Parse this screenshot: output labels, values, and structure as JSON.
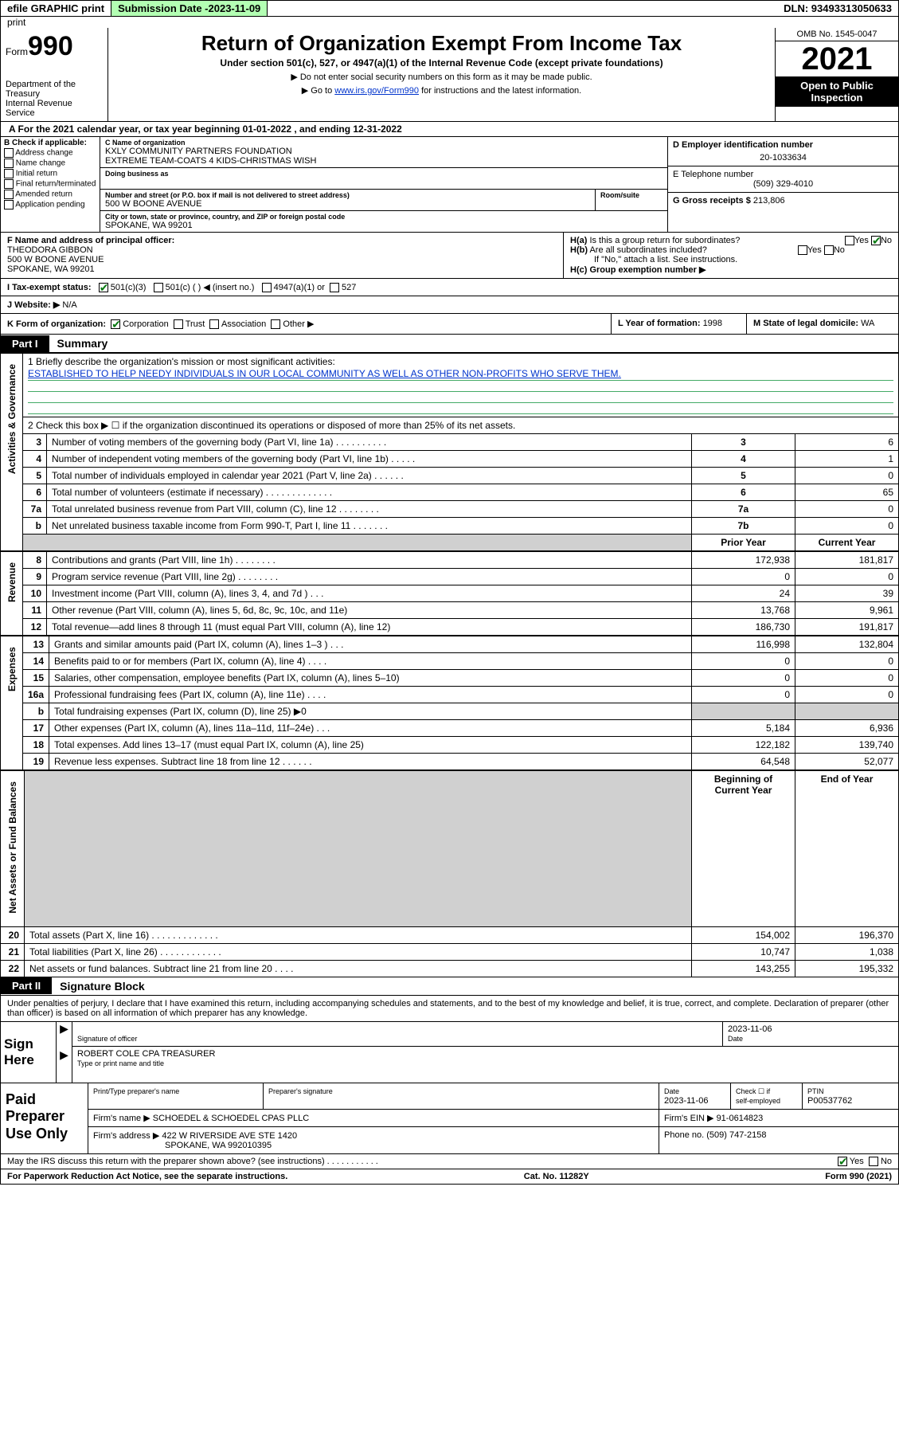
{
  "colors": {
    "green": "#b3ffb3",
    "link": "#0033cc",
    "ruleGreen": "#4a8a4a"
  },
  "topstrip": {
    "efile": "efile GRAPHIC print",
    "subLabel": "Submission Date - ",
    "subDate": "2023-11-09",
    "dln": "DLN: 93493313050633"
  },
  "header": {
    "formWord": "Form",
    "formNum": "990",
    "title": "Return of Organization Exempt From Income Tax",
    "sub": "Under section 501(c), 527, or 4947(a)(1) of the Internal Revenue Code (except private foundations)",
    "note1": "▶ Do not enter social security numbers on this form as it may be made public.",
    "note2a": "▶ Go to ",
    "note2link": "www.irs.gov/Form990",
    "note2b": " for instructions and the latest information.",
    "dept": "Department of the Treasury",
    "irs": "Internal Revenue Service",
    "omb": "OMB No. 1545-0047",
    "year": "2021",
    "pub": "Open to Public Inspection"
  },
  "rowA": "A  For the 2021 calendar year, or tax year beginning 01-01-2022   , and ending 12-31-2022",
  "boxB": {
    "head": "B Check if applicable:",
    "opts": [
      "Address change",
      "Name change",
      "Initial return",
      "Final return/terminated",
      "Amended return",
      "Application pending"
    ]
  },
  "boxC": {
    "nameLab": "C Name of organization",
    "name1": "KXLY COMMUNITY PARTNERS FOUNDATION",
    "name2": "EXTREME TEAM-COATS 4 KIDS-CHRISTMAS WISH",
    "dba": "Doing business as",
    "streetLab": "Number and street (or P.O. box if mail is not delivered to street address)",
    "roomLab": "Room/suite",
    "street": "500 W BOONE AVENUE",
    "cityLab": "City or town, state or province, country, and ZIP or foreign postal code",
    "city": "SPOKANE, WA  99201"
  },
  "boxRight": {
    "dLab": "D Employer identification number",
    "d": "20-1033634",
    "eLab": "E Telephone number",
    "e": "(509) 329-4010",
    "gLab": "G Gross receipts $ ",
    "g": "213,806"
  },
  "rowF": {
    "lab": "F  Name and address of principal officer:",
    "n": "THEODORA GIBBON",
    "a1": "500 W BOONE AVENUE",
    "a2": "SPOKANE, WA  99201"
  },
  "rowH": {
    "ha": "H(a)  Is this a group return for subordinates?",
    "hb": "H(b)  Are all subordinates included?",
    "note": "If \"No,\" attach a list. See instructions.",
    "hc": "H(c)  Group exemption number ▶",
    "yes": "Yes",
    "no": "No"
  },
  "rowI": "I   Tax-exempt status:",
  "rowI_opts": {
    "a": "501(c)(3)",
    "b": "501(c) (  ) ◀ (insert no.)",
    "c": "4947(a)(1) or",
    "d": "527"
  },
  "rowJ": {
    "lab": "J   Website: ▶ ",
    "v": "N/A"
  },
  "rowK": "K Form of organization:",
  "rowK_opts": {
    "a": "Corporation",
    "b": "Trust",
    "c": "Association",
    "d": "Other ▶"
  },
  "rowL": {
    "lab": "L Year of formation: ",
    "v": "1998"
  },
  "rowM": {
    "lab": "M State of legal domicile: ",
    "v": "WA"
  },
  "part1": {
    "tag": "Part I",
    "title": "Summary"
  },
  "side": {
    "a": "Activities & Governance",
    "b": "Revenue",
    "c": "Expenses",
    "d": "Net Assets or Fund Balances"
  },
  "mission": {
    "q": "1  Briefly describe the organization's mission or most significant activities:",
    "t": "ESTABLISHED TO HELP NEEDY INDIVIDUALS IN OUR LOCAL COMMUNITY AS WELL AS OTHER NON-PROFITS WHO SERVE THEM."
  },
  "lines": {
    "l2": "2   Check this box ▶ ☐  if the organization discontinued its operations or disposed of more than 25% of its net assets.",
    "l3": {
      "t": "Number of voting members of the governing body (Part VI, line 1a)   .    .    .    .    .    .    .    .    .    .",
      "v": "6"
    },
    "l4": {
      "t": "Number of independent voting members of the governing body (Part VI, line 1b)    .    .    .    .    .",
      "v": "1"
    },
    "l5": {
      "t": "Total number of individuals employed in calendar year 2021 (Part V, line 2a)    .    .    .    .    .    .",
      "v": "0"
    },
    "l6": {
      "t": "Total number of volunteers (estimate if necessary)    .    .    .    .    .    .    .    .    .    .    .    .    .",
      "v": "65"
    },
    "l7a": {
      "t": "Total unrelated business revenue from Part VIII, column (C), line 12    .    .    .    .    .    .    .    .",
      "v": "0"
    },
    "l7b": {
      "t": "Net unrelated business taxable income from Form 990-T, Part I, line 11    .    .    .    .    .    .    .",
      "v": "0"
    }
  },
  "cols": {
    "p": "Prior Year",
    "c": "Current Year",
    "boc": "Beginning of Current Year",
    "eoy": "End of Year"
  },
  "rev": [
    {
      "n": "8",
      "t": "Contributions and grants (Part VIII, line 1h)    .    .    .    .    .    .    .    .",
      "p": "172,938",
      "c": "181,817"
    },
    {
      "n": "9",
      "t": "Program service revenue (Part VIII, line 2g)    .    .    .    .    .    .    .    .",
      "p": "0",
      "c": "0"
    },
    {
      "n": "10",
      "t": "Investment income (Part VIII, column (A), lines 3, 4, and 7d )    .    .    .",
      "p": "24",
      "c": "39"
    },
    {
      "n": "11",
      "t": "Other revenue (Part VIII, column (A), lines 5, 6d, 8c, 9c, 10c, and 11e)",
      "p": "13,768",
      "c": "9,961"
    },
    {
      "n": "12",
      "t": "Total revenue—add lines 8 through 11 (must equal Part VIII, column (A), line 12)",
      "p": "186,730",
      "c": "191,817"
    }
  ],
  "exp": [
    {
      "n": "13",
      "t": "Grants and similar amounts paid (Part IX, column (A), lines 1–3 )    .    .    .",
      "p": "116,998",
      "c": "132,804"
    },
    {
      "n": "14",
      "t": "Benefits paid to or for members (Part IX, column (A), line 4)    .    .    .    .",
      "p": "0",
      "c": "0"
    },
    {
      "n": "15",
      "t": "Salaries, other compensation, employee benefits (Part IX, column (A), lines 5–10)",
      "p": "0",
      "c": "0"
    },
    {
      "n": "16a",
      "t": "Professional fundraising fees (Part IX, column (A), line 11e)    .    .    .    .",
      "p": "0",
      "c": "0"
    },
    {
      "n": "b",
      "t": "Total fundraising expenses (Part IX, column (D), line 25) ▶0",
      "p": "",
      "c": "",
      "shade": true
    },
    {
      "n": "17",
      "t": "Other expenses (Part IX, column (A), lines 11a–11d, 11f–24e)    .    .    .",
      "p": "5,184",
      "c": "6,936"
    },
    {
      "n": "18",
      "t": "Total expenses. Add lines 13–17 (must equal Part IX, column (A), line 25)",
      "p": "122,182",
      "c": "139,740"
    },
    {
      "n": "19",
      "t": "Revenue less expenses. Subtract line 18 from line 12    .    .    .    .    .    .",
      "p": "64,548",
      "c": "52,077"
    }
  ],
  "net": [
    {
      "n": "20",
      "t": "Total assets (Part X, line 16)    .    .    .    .    .    .    .    .    .    .    .    .    .",
      "p": "154,002",
      "c": "196,370"
    },
    {
      "n": "21",
      "t": "Total liabilities (Part X, line 26)    .    .    .    .    .    .    .    .    .    .    .    .",
      "p": "10,747",
      "c": "1,038"
    },
    {
      "n": "22",
      "t": "Net assets or fund balances. Subtract line 21 from line 20    .    .    .    .",
      "p": "143,255",
      "c": "195,332"
    }
  ],
  "part2": {
    "tag": "Part II",
    "title": "Signature Block"
  },
  "decl": "Under penalties of perjury, I declare that I have examined this return, including accompanying schedules and statements, and to the best of my knowledge and belief, it is true, correct, and complete. Declaration of preparer (other than officer) is based on all information of which preparer has any knowledge.",
  "sign": {
    "here": "Sign Here",
    "sigoff": "Signature of officer",
    "date": "Date",
    "dateval": "2023-11-06",
    "name": "ROBERT COLE CPA TREASURER",
    "type": "Type or print name and title"
  },
  "prep": {
    "lab": "Paid Preparer Use Only",
    "h1": "Print/Type preparer's name",
    "h2": "Preparer's signature",
    "h3": "Date",
    "h3v": "2023-11-06",
    "h4a": "Check ☐ if",
    "h4b": "self-employed",
    "h5": "PTIN",
    "h5v": "P00537762",
    "firmName": "Firm's name    ▶ ",
    "firmNameV": "SCHOEDEL & SCHOEDEL CPAS PLLC",
    "firmEin": "Firm's EIN ▶ ",
    "firmEinV": "91-0614823",
    "firmAddr": "Firm's address ▶ ",
    "firmAddrV": "422 W RIVERSIDE AVE STE 1420",
    "firmAddr2": "SPOKANE, WA  992010395",
    "phone": "Phone no. ",
    "phoneV": "(509) 747-2158"
  },
  "discuss": "May the IRS discuss this return with the preparer shown above? (see instructions)    .    .    .    .    .    .    .    .    .    .    .",
  "foot": {
    "a": "For Paperwork Reduction Act Notice, see the separate instructions.",
    "b": "Cat. No. 11282Y",
    "c": "Form 990 (2021)"
  }
}
